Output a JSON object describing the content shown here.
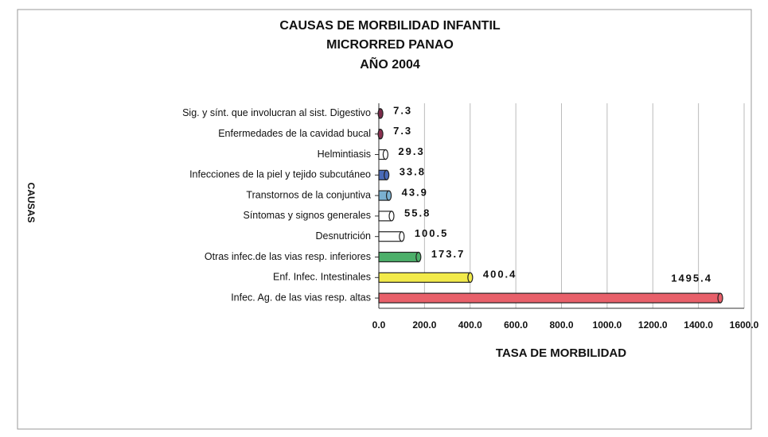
{
  "chart_data": {
    "type": "bar",
    "orientation": "horizontal",
    "title": [
      "CAUSAS DE MORBILIDAD INFANTIL",
      "MICRORRED PANAO",
      "AÑO 2004"
    ],
    "x_label": "TASA DE MORBILIDAD",
    "y_label": "CAUSAS",
    "categories": [
      "Sig. y sínt. que involucran al sist. Digestivo",
      "Enfermedades de la cavidad bucal",
      "Helmintiasis",
      "Infecciones de la piel y tejido subcutáneo",
      "Transtornos de la conjuntiva",
      "Síntomas y signos generales",
      "Desnutrición",
      "Otras infec.de las vias resp. inferiores",
      "Enf. Infec. Intestinales",
      "Infec. Ag. de las vias resp. altas"
    ],
    "values": [
      7.3,
      7.3,
      29.3,
      33.8,
      43.9,
      55.8,
      100.5,
      173.7,
      400.4,
      1495.4
    ],
    "colors": [
      "#7a2a4a",
      "#8a3050",
      "#ffffff",
      "#4a6ab8",
      "#7ab0d0",
      "#ffffff",
      "#ffffff",
      "#4caf6a",
      "#f2ea4a",
      "#e8606a"
    ],
    "xlim": [
      0,
      1600
    ],
    "xticks": [
      {
        "value": 0,
        "label": "0.0"
      },
      {
        "value": 200,
        "label": "200.0"
      },
      {
        "value": 400,
        "label": "400.0"
      },
      {
        "value": 600,
        "label": "600.0"
      },
      {
        "value": 800,
        "label": "800.0"
      },
      {
        "value": 1000,
        "label": "1000.0"
      },
      {
        "value": 1200,
        "label": "1200.0"
      },
      {
        "value": 1400,
        "label": "1400.0"
      },
      {
        "value": 1600,
        "label": "1600.0"
      }
    ],
    "grid": true
  }
}
